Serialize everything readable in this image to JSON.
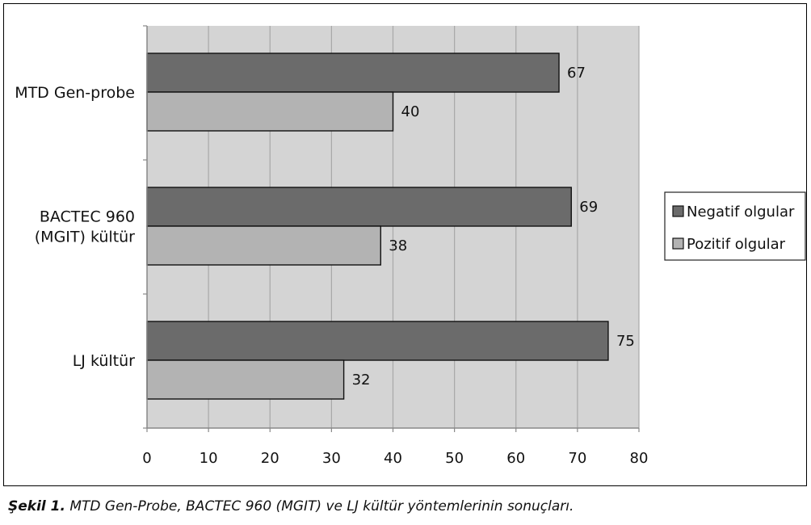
{
  "caption": {
    "label": "Şekil 1.",
    "text": "MTD Gen-Probe, BACTEC 960 (MGIT) ve LJ  kültür yöntemlerinin sonuçları."
  },
  "colors": {
    "plot_background": "#d4d4d4",
    "gridline": "#a8a8a8",
    "negatif": "#6b6b6b",
    "pozitif": "#b3b3b3",
    "bar_outline": "#111111"
  },
  "chart_data": {
    "type": "bar",
    "orientation": "horizontal",
    "categories": [
      [
        "MTD Gen-probe"
      ],
      [
        "BACTEC 960",
        "(MGIT) kültür"
      ],
      [
        "LJ kültür"
      ]
    ],
    "series": [
      {
        "name": "Negatif olgular",
        "values": [
          67,
          69,
          75
        ],
        "color": "#6b6b6b"
      },
      {
        "name": "Pozitif olgular",
        "values": [
          40,
          38,
          32
        ],
        "color": "#b3b3b3"
      }
    ],
    "xlim": [
      0,
      80
    ],
    "xticks": [
      0,
      10,
      20,
      30,
      40,
      50,
      60,
      70,
      80
    ],
    "data_labels": true,
    "grid": "vertical",
    "legend": "right"
  }
}
